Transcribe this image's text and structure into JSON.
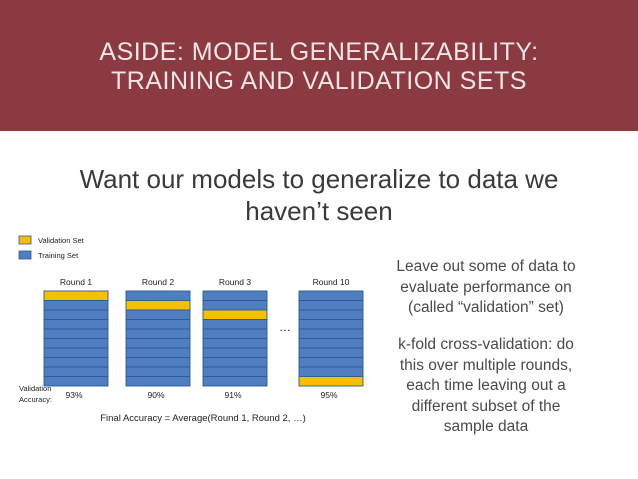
{
  "header": {
    "title_lines": [
      "ASIDE: MODEL GENERALIZABILITY:",
      "TRAINING AND VALIDATION SETS"
    ]
  },
  "subtitle_lines": [
    "Want our models to generalize to data we",
    "haven’t seen"
  ],
  "diagram": {
    "legend": [
      {
        "label": "Validation Set",
        "color": "#f5c000"
      },
      {
        "label": "Training Set",
        "color": "#4f7fc0"
      }
    ],
    "rounds": [
      {
        "label": "Round 1",
        "validation_fold": 1,
        "accuracy": "93%"
      },
      {
        "label": "Round 2",
        "validation_fold": 2,
        "accuracy": "90%"
      },
      {
        "label": "Round 3",
        "validation_fold": 3,
        "accuracy": "91%"
      },
      {
        "label": "Round 10",
        "validation_fold": 10,
        "accuracy": "95%"
      }
    ],
    "folds_per_round": 10,
    "ellipsis": "…",
    "accuracy_label_lines": [
      "Validation",
      "Accuracy:"
    ],
    "final_accuracy": "Final Accuracy  =  Average(Round 1, Round 2, …)",
    "colors": {
      "validation": "#f5c000",
      "training": "#4f7fc0",
      "border": "#2e5a95"
    }
  },
  "right_text": {
    "paragraph1": [
      "Leave out some of data to",
      "evaluate performance on",
      "(called “validation” set)"
    ],
    "paragraph2": [
      "k-fold cross-validation: do",
      "this over multiple rounds,",
      "each time leaving out a",
      "different subset of the",
      "sample data"
    ]
  }
}
